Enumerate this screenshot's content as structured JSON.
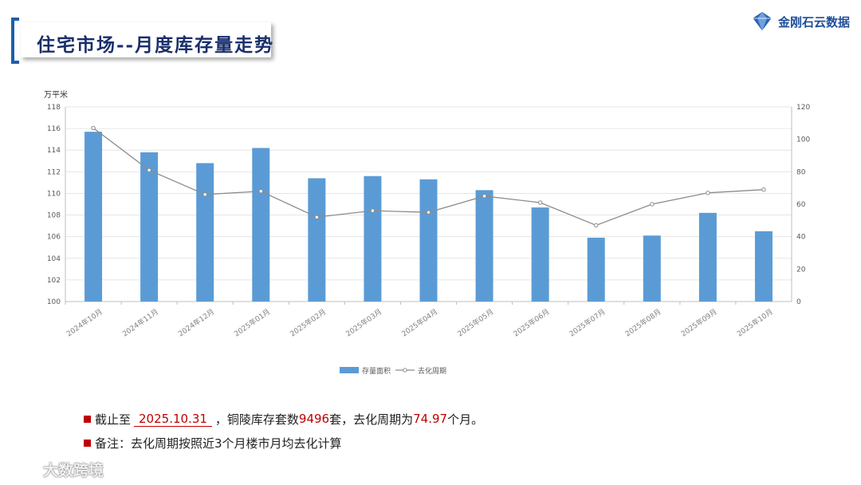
{
  "header": {
    "title": "住宅市场--月度库存量走势",
    "brand": "金刚石云数据",
    "brand_logo_icon": "diamond-logo-icon",
    "accent_color": "#1f5fa8"
  },
  "chart_data": {
    "type": "bar",
    "categories": [
      "2024年10月",
      "2024年11月",
      "2024年12月",
      "2025年01月",
      "2025年02月",
      "2025年03月",
      "2025年04月",
      "2025年05月",
      "2025年06月",
      "2025年07月",
      "2025年08月",
      "2025年09月",
      "2025年10月"
    ],
    "series": [
      {
        "name": "存量面积",
        "type": "bar",
        "axis": "left",
        "color": "#5b9bd5",
        "values": [
          115.7,
          113.8,
          112.8,
          114.2,
          111.4,
          111.6,
          111.3,
          110.3,
          108.7,
          105.9,
          106.1,
          108.2,
          106.5
        ]
      },
      {
        "name": "去化周期",
        "type": "line",
        "axis": "right",
        "color": "#8c8c8c",
        "values": [
          107,
          81,
          66,
          68,
          52,
          56,
          55,
          65,
          61,
          47,
          60,
          67,
          69
        ]
      }
    ],
    "ylabel": "万平米",
    "ylim": [
      100,
      118
    ],
    "yticks": [
      100,
      102,
      104,
      106,
      108,
      110,
      112,
      114,
      116,
      118
    ],
    "y2lim": [
      0,
      120
    ],
    "y2ticks": [
      0,
      20,
      40,
      60,
      80,
      100,
      120
    ],
    "grid": true,
    "legend": "bottom-center"
  },
  "notes": {
    "line1_prefix": "截止至",
    "line1_date": "2025.10.31",
    "line1_mid": "，铜陵库存套数",
    "line1_count": "9496",
    "line1_mid2": "套，去化周期为",
    "line1_period": "74.97",
    "line1_suffix": "个月。",
    "line2": "备注：去化周期按照近3个月楼市月均去化计算"
  },
  "watermark": {
    "text": "大数跨境",
    "icon": "cloud-logo-icon"
  }
}
